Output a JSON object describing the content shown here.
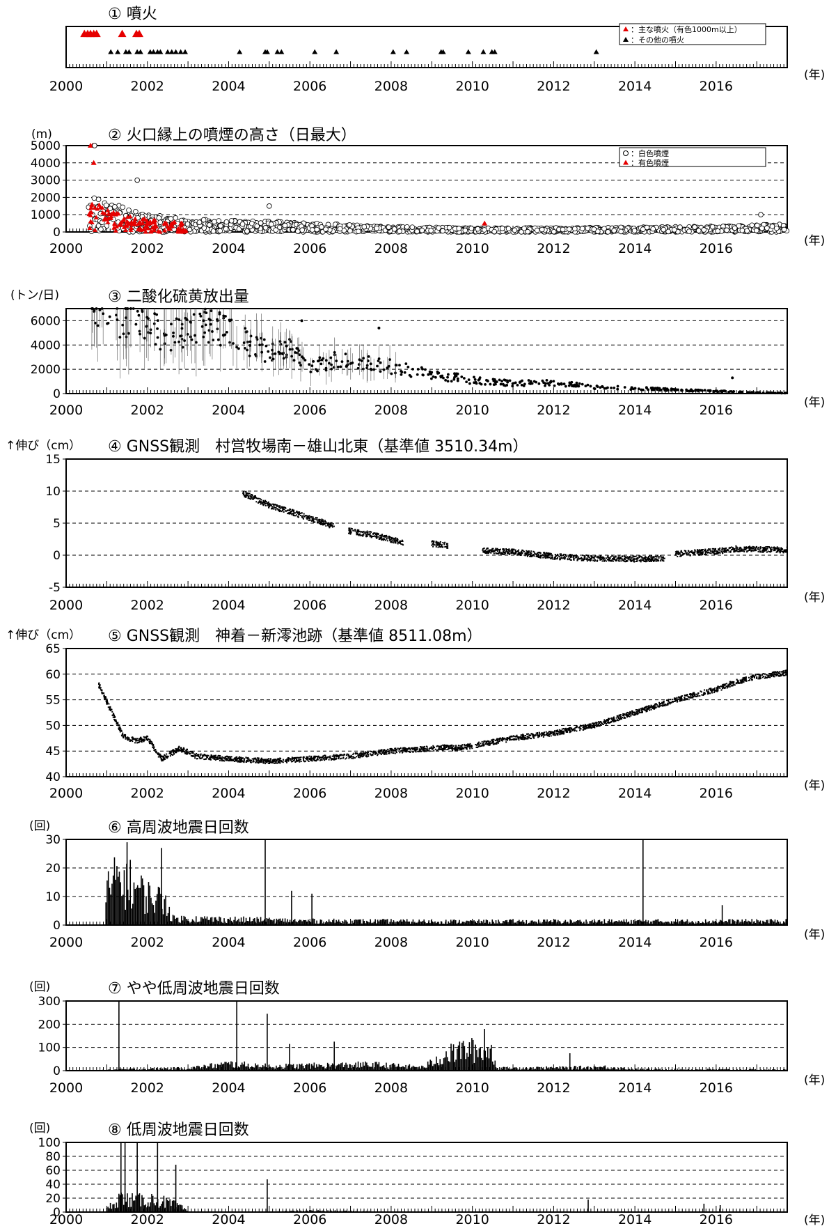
{
  "figure": {
    "year_suffix": "(年)",
    "colors": {
      "red": "#e60000",
      "black": "#000000"
    }
  },
  "chart_data": [
    {
      "id": "p1",
      "type": "scatter",
      "title": "① 噴火",
      "xlim": [
        2000,
        2017.75
      ],
      "ylim": [
        0,
        1
      ],
      "xticks": [
        "2000",
        "2002",
        "2004",
        "2006",
        "2008",
        "2010",
        "2012",
        "2014",
        "2016"
      ],
      "grid": false,
      "legend": "top-right",
      "legend_entries": [
        {
          "label": "：主な噴火（有色1000m以上）",
          "marker": "triangle",
          "color": "#e60000"
        },
        {
          "label": "：その他の噴火",
          "marker": "triangle",
          "color": "#000000"
        }
      ],
      "series": [
        {
          "marker": "triangle",
          "color": "#e60000",
          "level": 0.82,
          "x": [
            2000.45,
            2000.53,
            2000.6,
            2000.68,
            2000.75,
            2001.38,
            2001.73,
            2001.8
          ]
        },
        {
          "marker": "triangle",
          "color": "#000000",
          "level": 0.38,
          "x": [
            2001.1,
            2001.27,
            2001.47,
            2001.55,
            2001.75,
            2001.83,
            2002.07,
            2002.15,
            2002.25,
            2002.32,
            2002.5,
            2002.6,
            2002.7,
            2002.82,
            2002.93,
            2004.27,
            2004.9,
            2004.95,
            2005.2,
            2005.3,
            2006.12,
            2006.65,
            2008.05,
            2008.38,
            2009.23,
            2009.28,
            2009.9,
            2010.27,
            2010.48,
            2010.55,
            2013.05
          ]
        }
      ]
    },
    {
      "id": "p2",
      "type": "scatter",
      "title": "② 火口縁上の噴煙の高さ（日最大）",
      "ylabel": "(m)",
      "xlim": [
        2000,
        2017.75
      ],
      "ylim": [
        0,
        5000
      ],
      "yticks": [
        "0",
        "1000",
        "2000",
        "3000",
        "4000",
        "5000"
      ],
      "xticks": [
        "2000",
        "2002",
        "2004",
        "2006",
        "2008",
        "2010",
        "2012",
        "2014",
        "2016"
      ],
      "grid": "dashed-y",
      "legend": "top-right",
      "legend_entries": [
        {
          "label": "：白色噴煙",
          "marker": "circle",
          "color": "#000000"
        },
        {
          "label": "：有色噴煙",
          "marker": "triangle",
          "color": "#e60000"
        }
      ],
      "profile": {
        "x": [
          2000.55,
          2000.7,
          2001,
          2001.5,
          2002,
          2003,
          2004,
          2005,
          2006,
          2008,
          2010,
          2012,
          2014,
          2016,
          2017.75
        ],
        "y": [
          3200,
          2600,
          1700,
          1300,
          1000,
          700,
          650,
          600,
          500,
          300,
          220,
          230,
          260,
          320,
          450
        ]
      },
      "notable_points": [
        {
          "x": 2000.6,
          "y": 5000,
          "marker": "triangle",
          "color": "#e60000"
        },
        {
          "x": 2000.65,
          "y": 5000,
          "marker": "triangle",
          "color": "#e60000"
        },
        {
          "x": 2000.7,
          "y": 5000,
          "marker": "circle"
        },
        {
          "x": 2000.68,
          "y": 4000,
          "marker": "triangle",
          "color": "#e60000"
        },
        {
          "x": 2001.75,
          "y": 3000,
          "marker": "circle"
        },
        {
          "x": 2005,
          "y": 1500,
          "marker": "circle"
        },
        {
          "x": 2010.3,
          "y": 500,
          "marker": "triangle",
          "color": "#e60000"
        },
        {
          "x": 2017.1,
          "y": 1000,
          "marker": "circle"
        }
      ]
    },
    {
      "id": "p3",
      "type": "scatter",
      "title": "③ 二酸化硫黄放出量",
      "ylabel": "(トン/日)",
      "xlim": [
        2000,
        2017.75
      ],
      "ylim": [
        0,
        7000
      ],
      "yticks": [
        "0",
        "2000",
        "4000",
        "6000"
      ],
      "xticks": [
        "2000",
        "2002",
        "2004",
        "2006",
        "2008",
        "2010",
        "2012",
        "2014",
        "2016"
      ],
      "grid": "dashed-y",
      "error_bars": true,
      "profile": {
        "x": [
          2000.6,
          2001.5,
          2002,
          2002.5,
          2003,
          2003.5,
          2004,
          2004.5,
          2005,
          2005.5,
          2006,
          2006.5,
          2007,
          2007.5,
          2008,
          2009,
          2010,
          2011,
          2012,
          2013,
          2014,
          2015,
          2016,
          2017,
          2017.75
        ],
        "y": [
          6800,
          6200,
          5500,
          4800,
          5200,
          5600,
          5000,
          4200,
          3400,
          3600,
          2200,
          2600,
          3000,
          2400,
          2200,
          1600,
          1100,
          850,
          900,
          550,
          450,
          300,
          200,
          80,
          40
        ]
      },
      "notable_points": [
        {
          "x": 2016.4,
          "y": 1300
        },
        {
          "x": 2007.7,
          "y": 5400
        },
        {
          "x": 2005.8,
          "y": 6000
        }
      ]
    },
    {
      "id": "p4",
      "type": "scatter",
      "title": "④ GNSS観測　村営牧場南－雄山北東（基準値 3510.34m）",
      "ylabel": "↑伸び（cm）",
      "xlim": [
        2000,
        2017.75
      ],
      "ylim": [
        -5,
        15
      ],
      "yticks": [
        "-5",
        "0",
        "5",
        "10",
        "15"
      ],
      "xticks": [
        "2000",
        "2002",
        "2004",
        "2006",
        "2008",
        "2010",
        "2012",
        "2014",
        "2016"
      ],
      "grid": "dashed-y",
      "segments": [
        {
          "x": [
            2004.35,
            2005,
            2006,
            2006.6
          ],
          "y": [
            9.7,
            7.8,
            5.8,
            4.5
          ]
        },
        {
          "x": [
            2006.95,
            2007.5,
            2008.3
          ],
          "y": [
            3.8,
            3.2,
            2.0
          ]
        },
        {
          "x": [
            2009,
            2009.4
          ],
          "y": [
            1.8,
            1.5
          ]
        },
        {
          "x": [
            2010.25,
            2011,
            2012,
            2013,
            2014,
            2014.75
          ],
          "y": [
            0.7,
            0.5,
            -0.2,
            -0.5,
            -0.6,
            -0.5
          ]
        },
        {
          "x": [
            2015,
            2016,
            2016.5,
            2017,
            2017.75
          ],
          "y": [
            0.2,
            0.6,
            1.0,
            0.9,
            0.8
          ]
        }
      ]
    },
    {
      "id": "p5",
      "type": "scatter",
      "title": "⑤ GNSS観測　神着－新澪池跡（基準値 8511.08m）",
      "ylabel": "↑伸び（cm）",
      "xlim": [
        2000,
        2017.75
      ],
      "ylim": [
        40,
        65
      ],
      "yticks": [
        "40",
        "45",
        "50",
        "55",
        "60",
        "65"
      ],
      "xticks": [
        "2000",
        "2002",
        "2004",
        "2006",
        "2008",
        "2010",
        "2012",
        "2014",
        "2016"
      ],
      "grid": "dashed-y",
      "segments": [
        {
          "x": [
            2000.8,
            2001.1,
            2001.4,
            2001.7,
            2002,
            2002.35,
            2002.8,
            2003.2,
            2004,
            2005,
            2006,
            2007,
            2008,
            2009,
            2009.5
          ],
          "y": [
            58,
            53,
            48,
            47,
            47.5,
            43.5,
            45.5,
            44,
            43.5,
            43,
            43.5,
            44,
            45,
            45.5,
            45.8
          ]
        },
        {
          "x": [
            2009.5,
            2010,
            2011,
            2012,
            2013,
            2014,
            2015,
            2016,
            2016.5,
            2017,
            2017.75
          ],
          "y": [
            45.5,
            46,
            47.5,
            48.5,
            50,
            52.5,
            55,
            57,
            58.5,
            59.5,
            60.3
          ]
        }
      ]
    },
    {
      "id": "p6",
      "type": "bar",
      "title": "⑥ 高周波地震日回数",
      "ylabel": "(回)",
      "xlim": [
        2000,
        2017.75
      ],
      "ylim": [
        0,
        30
      ],
      "yticks": [
        "0",
        "10",
        "20",
        "30"
      ],
      "xticks": [
        "2000",
        "2002",
        "2004",
        "2006",
        "2008",
        "2010",
        "2012",
        "2014",
        "2016"
      ],
      "grid": "dashed-y",
      "profile": {
        "x": [
          2000.95,
          2001,
          2001.3,
          2001.6,
          2002,
          2002.5,
          2002.6,
          2003,
          2006,
          2010,
          2014,
          2017.75
        ],
        "y": [
          0,
          12,
          16,
          14,
          10,
          8,
          2.2,
          2.2,
          1.4,
          1.2,
          1.3,
          1.3
        ]
      },
      "spikes": [
        {
          "x": 2001.5,
          "y": 29
        },
        {
          "x": 2002.35,
          "y": 27
        },
        {
          "x": 2004.9,
          "y": 30
        },
        {
          "x": 2005.55,
          "y": 12
        },
        {
          "x": 2006.05,
          "y": 11
        },
        {
          "x": 2014.2,
          "y": 30
        },
        {
          "x": 2016.15,
          "y": 7
        }
      ]
    },
    {
      "id": "p7",
      "type": "bar",
      "title": "⑦ やや低周波地震日回数",
      "ylabel": "(回)",
      "xlim": [
        2000,
        2017.75
      ],
      "ylim": [
        0,
        300
      ],
      "yticks": [
        "0",
        "100",
        "200",
        "300"
      ],
      "xticks": [
        "2000",
        "2002",
        "2004",
        "2006",
        "2008",
        "2010",
        "2012",
        "2014",
        "2016"
      ],
      "grid": "dashed-y",
      "profile": {
        "x": [
          2000.9,
          2001.5,
          2003,
          2004,
          2005,
          2007.5,
          2008.8,
          2009.2,
          2009.8,
          2010.5,
          2010.6,
          2012.3,
          2013.3,
          2014,
          2017.75
        ],
        "y": [
          3,
          6,
          10,
          28,
          18,
          25,
          14,
          55,
          90,
          80,
          10,
          12,
          15,
          6,
          4
        ]
      },
      "spikes": [
        {
          "x": 2001.3,
          "y": 300
        },
        {
          "x": 2004.2,
          "y": 300
        },
        {
          "x": 2004.95,
          "y": 245
        },
        {
          "x": 2005.5,
          "y": 115
        },
        {
          "x": 2006.6,
          "y": 125
        },
        {
          "x": 2010.3,
          "y": 180
        },
        {
          "x": 2012.4,
          "y": 75
        }
      ]
    },
    {
      "id": "p8",
      "type": "bar",
      "title": "⑧ 低周波地震日回数",
      "ylabel": "(回)",
      "xlim": [
        2000,
        2017.75
      ],
      "ylim": [
        0,
        100
      ],
      "yticks": [
        "0",
        "20",
        "40",
        "60",
        "80",
        "100"
      ],
      "xticks": [
        "2000",
        "2002",
        "2004",
        "2006",
        "2008",
        "2010",
        "2012",
        "2014",
        "2016"
      ],
      "grid": "dashed-y",
      "profile": {
        "x": [
          2001,
          2001.3,
          2001.7,
          2002.2,
          2002.8,
          2003,
          2005,
          2006,
          2008,
          2017.75
        ],
        "y": [
          4,
          20,
          16,
          18,
          8,
          0.5,
          0.5,
          2,
          0.6,
          0.5
        ]
      },
      "spikes": [
        {
          "x": 2001.35,
          "y": 100
        },
        {
          "x": 2001.45,
          "y": 100
        },
        {
          "x": 2001.75,
          "y": 100
        },
        {
          "x": 2002.25,
          "y": 100
        },
        {
          "x": 2002.7,
          "y": 68
        },
        {
          "x": 2004.95,
          "y": 47
        },
        {
          "x": 2012.85,
          "y": 18
        },
        {
          "x": 2015.7,
          "y": 12
        },
        {
          "x": 2016.1,
          "y": 10
        }
      ]
    }
  ]
}
